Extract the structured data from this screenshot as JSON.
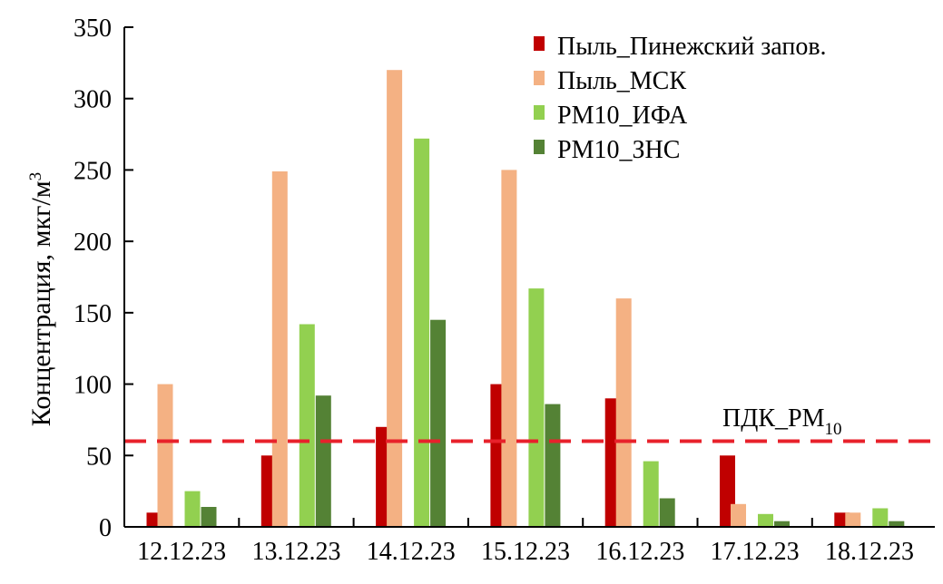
{
  "chart_data": {
    "type": "bar",
    "title": "",
    "xlabel": "",
    "ylabel": "Концентрация, мкг/м",
    "ylabel_sup": "3",
    "ylim": [
      0,
      350
    ],
    "yticks": [
      0,
      50,
      100,
      150,
      200,
      250,
      300,
      350
    ],
    "yticks_text": [
      "0",
      "50",
      "100",
      "150",
      "200",
      "250",
      "300",
      "350"
    ],
    "categories": [
      "12.12.23",
      "13.12.23",
      "14.12.23",
      "15.12.23",
      "16.12.23",
      "17.12.23",
      "18.12.23"
    ],
    "series": [
      {
        "name": "Пыль_Пинежский запов.",
        "color": "#c00000",
        "values": [
          10,
          50,
          70,
          100,
          90,
          50,
          10
        ]
      },
      {
        "name": "Пыль_МСК",
        "color": "#f4b183",
        "values": [
          100,
          249,
          320,
          250,
          160,
          16,
          10
        ]
      },
      {
        "name": "PM10_ИФА",
        "color": "#92d050",
        "values": [
          25,
          142,
          272,
          167,
          46,
          9,
          13
        ]
      },
      {
        "name": "PM10_ЗНС",
        "color": "#548235",
        "values": [
          14,
          92,
          145,
          86,
          20,
          4,
          4
        ]
      }
    ],
    "reference_line": {
      "label": "ПДК_PM",
      "label_sub": "10",
      "value": 60,
      "color": "#e8212b",
      "style": "dashed"
    },
    "legend": "top-right",
    "grid": false
  }
}
